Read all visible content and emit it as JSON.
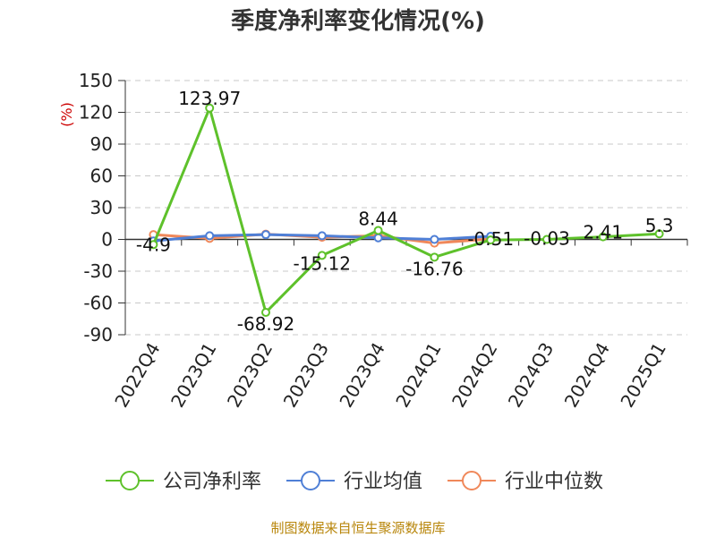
{
  "chart_data": {
    "type": "line",
    "title": "季度净利率变化情况(%)",
    "ylabel": "(%)",
    "xlabel": "",
    "categories": [
      "2022Q4",
      "2023Q1",
      "2023Q2",
      "2023Q3",
      "2023Q4",
      "2024Q1",
      "2024Q2",
      "2024Q3",
      "2024Q4",
      "2025Q1"
    ],
    "ylim": [
      -90,
      150
    ],
    "yticks": [
      150,
      120,
      90,
      60,
      30,
      0,
      -30,
      -60,
      -90
    ],
    "grid": true,
    "legend_position": "bottom",
    "series": [
      {
        "name": "公司净利率",
        "color": "#5ec12b",
        "values": [
          -4.9,
          123.97,
          -68.92,
          -15.12,
          8.44,
          -16.76,
          -0.51,
          -0.03,
          2.41,
          5.3
        ],
        "labels": [
          "-4.9",
          "123.97",
          "-68.92",
          "-15.12",
          "8.44",
          "-16.76",
          "-0.51",
          "-0.03",
          "2.41",
          "5.3"
        ]
      },
      {
        "name": "行业均值",
        "color": "#4f7fd6",
        "values": [
          -1.5,
          3.5,
          4.5,
          3.5,
          1.5,
          0,
          3,
          null,
          null,
          null
        ]
      },
      {
        "name": "行业中位数",
        "color": "#f0885a",
        "values": [
          4.5,
          1.0,
          5.0,
          2.0,
          3.5,
          -3.5,
          0.5,
          null,
          null,
          null
        ]
      }
    ],
    "source": "制图数据来自恒生聚源数据库"
  }
}
